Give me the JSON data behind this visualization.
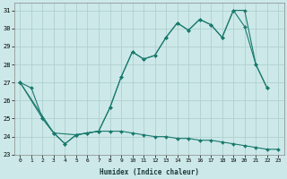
{
  "xlabel": "Humidex (Indice chaleur)",
  "bg_color": "#cce8e8",
  "grid_color": "#aacccc",
  "line_color": "#1a7a6e",
  "xlim": [
    -0.5,
    23.5
  ],
  "ylim": [
    23,
    31.4
  ],
  "yticks": [
    23,
    24,
    25,
    26,
    27,
    28,
    29,
    30,
    31
  ],
  "xticks": [
    0,
    1,
    2,
    3,
    4,
    5,
    6,
    7,
    8,
    9,
    10,
    11,
    12,
    13,
    14,
    15,
    16,
    17,
    18,
    19,
    20,
    21,
    22,
    23
  ],
  "series1_x": [
    0,
    1,
    2,
    3,
    4,
    5,
    6,
    7,
    8,
    9,
    10,
    11,
    12,
    13,
    14,
    15,
    16,
    17,
    18,
    19,
    20,
    21,
    22,
    23
  ],
  "series1_y": [
    27.0,
    26.7,
    25.0,
    24.2,
    23.6,
    24.1,
    24.2,
    24.3,
    24.3,
    24.3,
    24.2,
    24.1,
    24.0,
    24.0,
    23.9,
    23.9,
    23.8,
    23.8,
    23.7,
    23.6,
    23.5,
    23.4,
    23.3,
    23.3
  ],
  "series2_x": [
    0,
    2,
    3,
    4,
    5,
    6,
    7,
    8,
    9,
    10,
    11,
    12,
    13,
    14,
    15,
    16,
    17,
    18,
    19,
    20,
    21,
    22
  ],
  "series2_y": [
    27.0,
    25.0,
    24.2,
    23.6,
    24.1,
    24.2,
    24.3,
    25.6,
    27.3,
    28.7,
    28.3,
    28.5,
    29.5,
    30.3,
    29.9,
    30.5,
    30.2,
    29.5,
    31.0,
    30.1,
    28.0,
    26.7
  ],
  "series3_x": [
    0,
    3,
    5,
    7,
    8,
    9,
    10,
    11,
    12,
    13,
    14,
    15,
    16,
    17,
    18,
    19,
    20,
    21,
    22
  ],
  "series3_y": [
    27.0,
    24.2,
    24.1,
    24.3,
    25.6,
    27.3,
    28.7,
    28.3,
    28.5,
    29.5,
    30.3,
    29.9,
    30.5,
    30.2,
    29.5,
    31.0,
    31.0,
    28.0,
    26.7
  ]
}
